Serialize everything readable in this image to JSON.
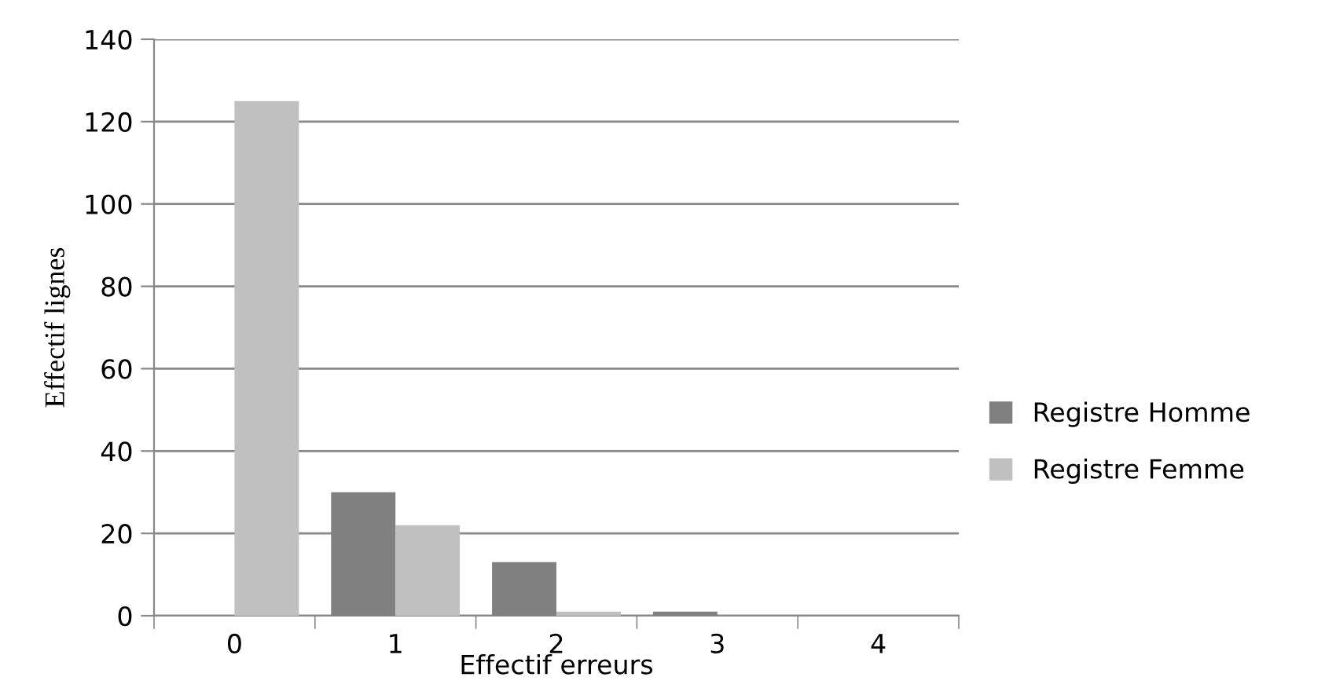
{
  "chart_data": {
    "type": "bar",
    "xlabel": "Effectif erreurs",
    "ylabel": "Effectif lignes",
    "categories": [
      "0",
      "1",
      "2",
      "3",
      "4"
    ],
    "series": [
      {
        "name": "Registre Homme",
        "color": "#808080",
        "values": [
          0,
          30,
          13,
          1,
          0
        ]
      },
      {
        "name": "Registre Femme",
        "color": "#c0c0c0",
        "values": [
          125,
          22,
          1,
          0,
          0
        ]
      }
    ],
    "ylim": [
      0,
      140
    ],
    "yticks": [
      0,
      20,
      40,
      60,
      80,
      100,
      120,
      140
    ],
    "grid": "y",
    "legend": "right"
  }
}
